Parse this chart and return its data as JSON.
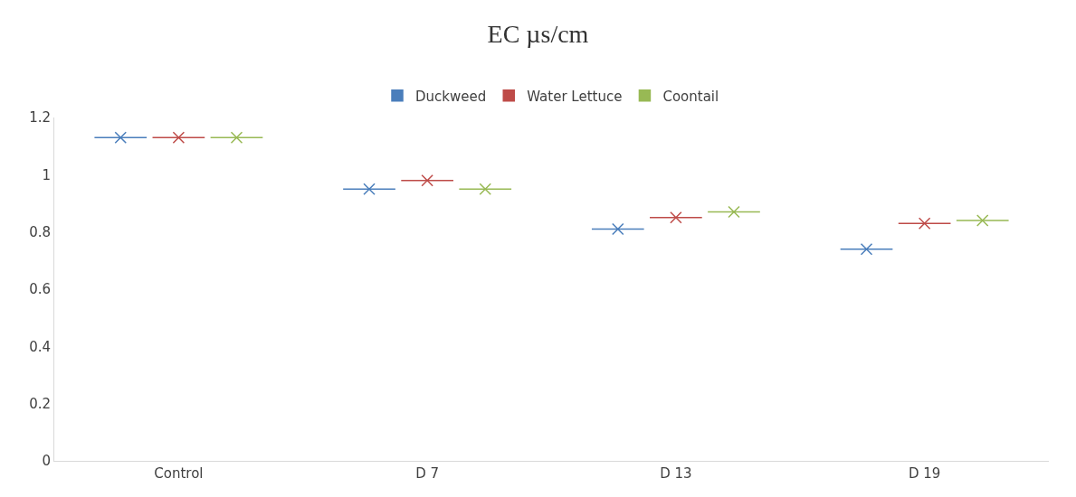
{
  "chart_data": {
    "type": "box",
    "title": "EC µs/cm",
    "categories": [
      "Control",
      "D 7",
      "D 13",
      "D 19"
    ],
    "series": [
      {
        "name": "Duckweed",
        "color": "#4a7ebb",
        "boxes": [
          {
            "low": 1.13,
            "q1": 1.13,
            "median": 1.13,
            "q3": 1.13,
            "high": 1.13,
            "mean": 1.13
          },
          {
            "low": 0.95,
            "q1": 0.95,
            "median": 0.95,
            "q3": 0.95,
            "high": 0.95,
            "mean": 0.95
          },
          {
            "low": 0.81,
            "q1": 0.81,
            "median": 0.81,
            "q3": 0.81,
            "high": 0.81,
            "mean": 0.81
          },
          {
            "low": 0.74,
            "q1": 0.74,
            "median": 0.74,
            "q3": 0.74,
            "high": 0.74,
            "mean": 0.74
          }
        ]
      },
      {
        "name": "Water Lettuce",
        "color": "#be4b48",
        "boxes": [
          {
            "low": 1.13,
            "q1": 1.13,
            "median": 1.13,
            "q3": 1.13,
            "high": 1.13,
            "mean": 1.13
          },
          {
            "low": 0.98,
            "q1": 0.98,
            "median": 0.98,
            "q3": 0.98,
            "high": 0.98,
            "mean": 0.98
          },
          {
            "low": 0.85,
            "q1": 0.85,
            "median": 0.85,
            "q3": 0.85,
            "high": 0.85,
            "mean": 0.85
          },
          {
            "low": 0.83,
            "q1": 0.83,
            "median": 0.83,
            "q3": 0.83,
            "high": 0.83,
            "mean": 0.83
          }
        ]
      },
      {
        "name": "Coontail",
        "color": "#98b954",
        "boxes": [
          {
            "low": 1.13,
            "q1": 1.13,
            "median": 1.13,
            "q3": 1.13,
            "high": 1.13,
            "mean": 1.13
          },
          {
            "low": 0.95,
            "q1": 0.95,
            "median": 0.95,
            "q3": 0.95,
            "high": 0.95,
            "mean": 0.95
          },
          {
            "low": 0.87,
            "q1": 0.87,
            "median": 0.87,
            "q3": 0.87,
            "high": 0.87,
            "mean": 0.87
          },
          {
            "low": 0.84,
            "q1": 0.84,
            "median": 0.84,
            "q3": 0.84,
            "high": 0.84,
            "mean": 0.84
          }
        ]
      }
    ],
    "ylim": [
      0,
      1.2
    ],
    "yticks": [
      0,
      0.2,
      0.4,
      0.6,
      0.8,
      1,
      1.2
    ],
    "legend": "top",
    "marker": "cross"
  }
}
